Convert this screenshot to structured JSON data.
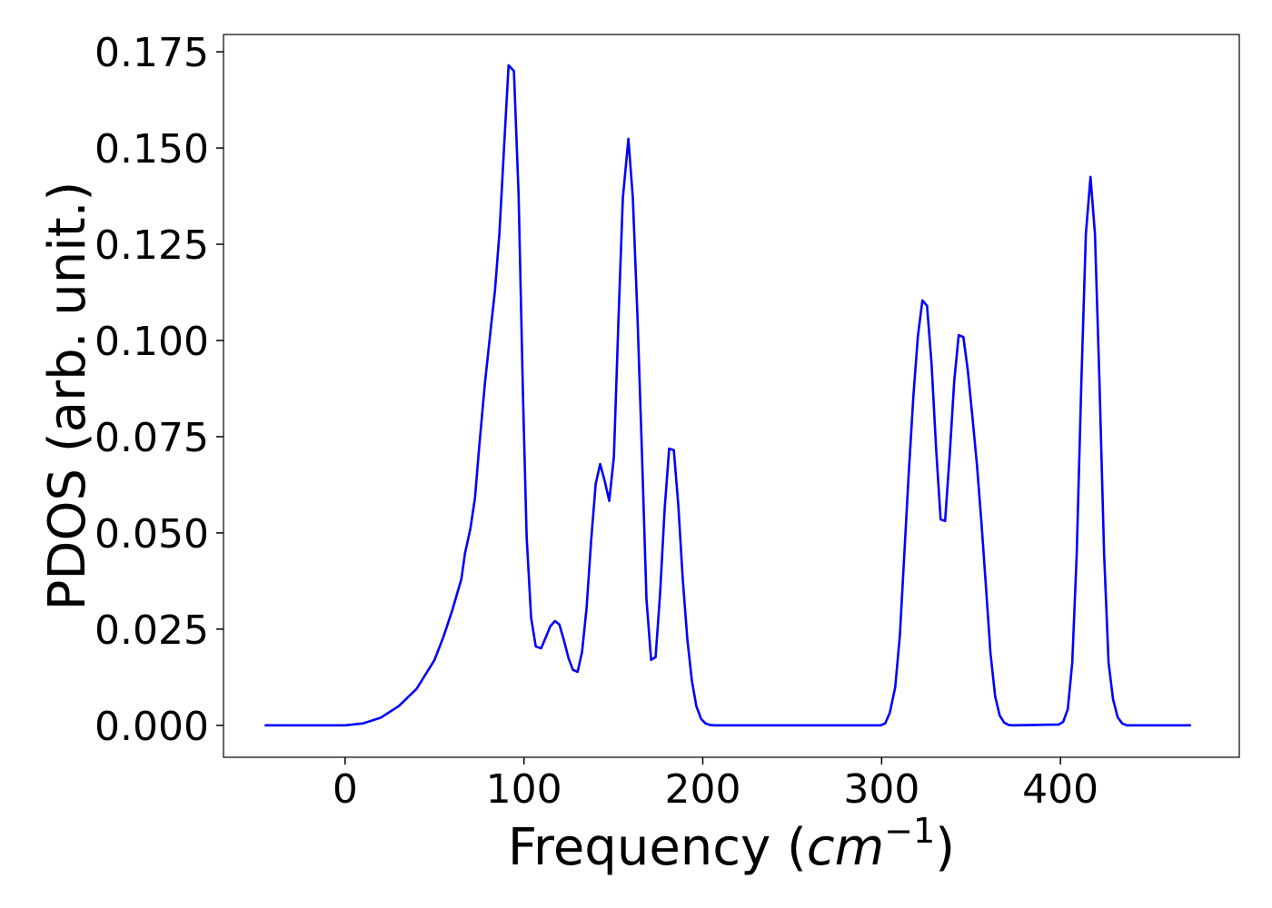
{
  "chart_data": {
    "type": "line",
    "xlabel": [
      "Frequency (",
      "cm",
      "−1",
      ")"
    ],
    "ylabel": "PDOS (arb. unit.)",
    "xlim": [
      -68,
      500
    ],
    "ylim": [
      -0.0083,
      0.1795
    ],
    "xticks": [
      0,
      100,
      200,
      300,
      400
    ],
    "yticks": [
      {
        "value": 0,
        "label": "0.000"
      },
      {
        "value": 0.025,
        "label": "0.025"
      },
      {
        "value": 0.05,
        "label": "0.050"
      },
      {
        "value": 0.075,
        "label": "0.075"
      },
      {
        "value": 0.1,
        "label": "0.100"
      },
      {
        "value": 0.125,
        "label": "0.125"
      },
      {
        "value": 0.15,
        "label": "0.150"
      },
      {
        "value": 0.175,
        "label": "0.175"
      }
    ],
    "grid": false,
    "series": [
      {
        "color": "#0000ff",
        "x": [
          -45,
          0,
          10,
          20,
          30,
          40,
          50,
          55,
          60,
          65,
          67,
          70,
          72.6,
          75.1,
          78.2,
          81.2,
          83.8,
          86.3,
          88.8,
          91.4,
          94.4,
          97,
          99.5,
          101.5,
          104,
          106.6,
          109.6,
          112.7,
          114.7,
          117.3,
          119.8,
          122.3,
          124.9,
          127.4,
          130,
          132.5,
          135,
          137.6,
          140.1,
          142.6,
          145.2,
          147.7,
          150.3,
          152.8,
          155.3,
          158.4,
          160.9,
          163.5,
          166,
          168.5,
          171.1,
          173.6,
          176.1,
          178.7,
          181.2,
          183.8,
          186.3,
          188.8,
          191.4,
          193.9,
          196.4,
          199,
          201.5,
          204,
          206.6,
          299.5,
          302,
          304.6,
          307.6,
          310.2,
          312.7,
          315.2,
          317.8,
          320.3,
          322.8,
          325.4,
          327.9,
          330.5,
          333,
          335.5,
          338.1,
          340.6,
          343.1,
          345.7,
          348.2,
          350.8,
          353.3,
          355.8,
          358.4,
          360.9,
          363.5,
          366,
          368.5,
          371.1,
          373.6,
          399,
          401.5,
          404.1,
          406.6,
          409.1,
          411.7,
          414.2,
          416.8,
          419.3,
          421.8,
          424.4,
          426.9,
          429.4,
          432,
          434.5,
          437.1,
          473
        ],
        "values": [
          0,
          0,
          0.0005,
          0.002,
          0.005,
          0.0095,
          0.017,
          0.023,
          0.03,
          0.038,
          0.0446,
          0.051,
          0.059,
          0.073,
          0.089,
          0.102,
          0.113,
          0.128,
          0.1495,
          0.1715,
          0.17,
          0.138,
          0.085,
          0.049,
          0.028,
          0.0205,
          0.02,
          0.0234,
          0.0257,
          0.0271,
          0.0262,
          0.0222,
          0.0175,
          0.0144,
          0.0139,
          0.0191,
          0.0304,
          0.0481,
          0.0627,
          0.0679,
          0.0634,
          0.0583,
          0.0698,
          0.1047,
          0.137,
          0.1524,
          0.137,
          0.106,
          0.0705,
          0.0328,
          0.017,
          0.0177,
          0.034,
          0.0564,
          0.0719,
          0.0715,
          0.0573,
          0.038,
          0.0222,
          0.0116,
          0.005,
          0.0017,
          0.0005,
          0.0001,
          0,
          0,
          0.0005,
          0.0033,
          0.0099,
          0.0233,
          0.0446,
          0.0658,
          0.0858,
          0.1012,
          0.1104,
          0.109,
          0.0941,
          0.0717,
          0.0535,
          0.0531,
          0.0705,
          0.0894,
          0.1014,
          0.1009,
          0.0922,
          0.08,
          0.0677,
          0.0528,
          0.0356,
          0.0186,
          0.0075,
          0.0026,
          0.0007,
          0.0001,
          0,
          0.0002,
          0.0009,
          0.0042,
          0.0163,
          0.0446,
          0.0894,
          0.1276,
          0.1425,
          0.1276,
          0.0894,
          0.0446,
          0.0163,
          0.0068,
          0.0021,
          0.0005,
          0,
          0
        ]
      }
    ]
  }
}
